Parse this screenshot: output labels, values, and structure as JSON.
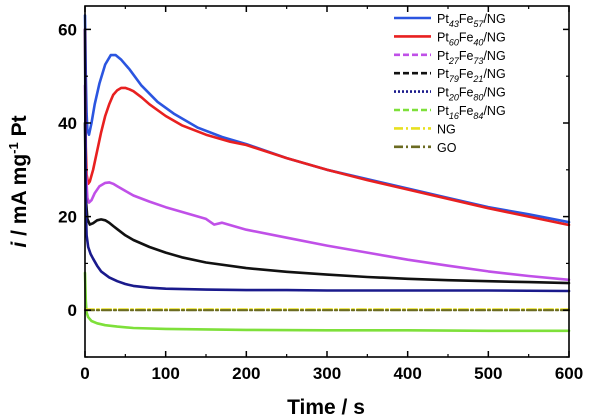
{
  "chart_data": {
    "type": "line",
    "xlabel": "Time / s",
    "ylabel": "i / mA mg-1 Pt",
    "xlim": [
      0,
      600
    ],
    "ylim": [
      -10,
      65
    ],
    "xticks": [
      0,
      100,
      200,
      300,
      400,
      500,
      600
    ],
    "yticks": [
      0,
      20,
      40,
      60
    ],
    "grid": false,
    "legend_position": "top-right",
    "series": [
      {
        "name": "Pt43Fe57/NG",
        "legend": {
          "pre": "Pt",
          "s1": "43",
          "mid": "Fe",
          "s2": "57",
          "post": "/NG"
        },
        "color": "#2b55e0",
        "dash": "solid",
        "x": [
          0,
          1,
          2,
          3,
          5,
          8,
          12,
          18,
          25,
          32,
          38,
          45,
          55,
          70,
          90,
          110,
          140,
          170,
          200,
          250,
          300,
          350,
          400,
          450,
          500,
          550,
          600
        ],
        "y": [
          63,
          50,
          42,
          38.5,
          37.5,
          40,
          44,
          48.5,
          52.5,
          54.5,
          54.5,
          53.5,
          51.5,
          48,
          44.5,
          42,
          39,
          37,
          35.5,
          32.5,
          30,
          28,
          26,
          24,
          22,
          20.5,
          18.8
        ]
      },
      {
        "name": "Pt60Fe40/NG",
        "legend": {
          "pre": "Pt",
          "s1": "60",
          "mid": "Fe",
          "s2": "40",
          "post": "/NG"
        },
        "color": "#e82020",
        "dash": "solid",
        "x": [
          0,
          1,
          2,
          4,
          6,
          10,
          15,
          20,
          25,
          30,
          35,
          40,
          45,
          50,
          55,
          60,
          70,
          80,
          100,
          120,
          150,
          180,
          200,
          250,
          300,
          350,
          400,
          450,
          500,
          550,
          600
        ],
        "y": [
          60,
          35,
          29,
          27,
          27.5,
          30,
          34,
          38,
          41.5,
          44,
          46,
          47,
          47.5,
          47.5,
          47.2,
          46.8,
          45.5,
          44,
          41.5,
          39.5,
          37.5,
          36,
          35.3,
          32.5,
          30,
          27.8,
          25.8,
          23.8,
          21.8,
          20,
          18.2
        ]
      },
      {
        "name": "Pt27Fe73/NG",
        "legend": {
          "pre": "Pt",
          "s1": "27",
          "mid": "Fe",
          "s2": "73",
          "post": "/NG"
        },
        "color": "#c050e8",
        "dash": "solid",
        "x": [
          0,
          1,
          3,
          5,
          8,
          12,
          18,
          25,
          30,
          35,
          40,
          50,
          60,
          80,
          100,
          120,
          150,
          160,
          170,
          200,
          250,
          300,
          350,
          400,
          450,
          500,
          550,
          600
        ],
        "y": [
          48,
          30,
          24,
          23,
          23.5,
          25,
          26.5,
          27.2,
          27.3,
          27,
          26.5,
          25.5,
          24.5,
          23.2,
          22,
          21,
          19.5,
          18.3,
          18.7,
          17.2,
          15.5,
          13.8,
          12.3,
          10.8,
          9.5,
          8.3,
          7.3,
          6.5
        ]
      },
      {
        "name": "Pt79Fe21/NG",
        "legend": {
          "pre": "Pt",
          "s1": "79",
          "mid": "Fe",
          "s2": "21",
          "post": "/NG"
        },
        "color": "#111111",
        "dash": "solid",
        "x": [
          0,
          1,
          3,
          6,
          10,
          15,
          20,
          25,
          30,
          35,
          40,
          50,
          60,
          80,
          100,
          120,
          150,
          200,
          250,
          300,
          350,
          400,
          450,
          500,
          550,
          600
        ],
        "y": [
          40,
          24,
          19.5,
          18.3,
          18.6,
          19.2,
          19.4,
          19.2,
          18.7,
          18,
          17.3,
          16,
          15,
          13.5,
          12.3,
          11.3,
          10.2,
          9,
          8.2,
          7.6,
          7.1,
          6.7,
          6.4,
          6.2,
          6,
          5.8
        ]
      },
      {
        "name": "Pt20Fe80/NG",
        "legend": {
          "pre": "Pt",
          "s1": "20",
          "mid": "Fe",
          "s2": "80",
          "post": "/NG"
        },
        "color": "#1a1a8c",
        "dash": "solid",
        "x": [
          0,
          1,
          2,
          4,
          7,
          10,
          15,
          20,
          30,
          40,
          50,
          60,
          80,
          100,
          150,
          200,
          250,
          300,
          400,
          500,
          600
        ],
        "y": [
          60,
          22,
          16,
          13.5,
          12,
          11,
          9.5,
          8.3,
          7,
          6.2,
          5.6,
          5.2,
          4.8,
          4.6,
          4.4,
          4.3,
          4.3,
          4.2,
          4.2,
          4.2,
          4.1
        ]
      },
      {
        "name": "Pt16Fe84/NG",
        "legend": {
          "pre": "Pt",
          "s1": "16",
          "mid": "Fe",
          "s2": "84",
          "post": "/NG"
        },
        "color": "#7ee03a",
        "dash": "solid",
        "x": [
          0,
          1,
          2,
          4,
          8,
          15,
          25,
          40,
          60,
          100,
          150,
          200,
          300,
          400,
          500,
          600
        ],
        "y": [
          8,
          2,
          -0.5,
          -1.5,
          -2.3,
          -2.8,
          -3.2,
          -3.5,
          -3.8,
          -4.0,
          -4.1,
          -4.2,
          -4.3,
          -4.3,
          -4.4,
          -4.4
        ]
      },
      {
        "name": "NG",
        "legend": {
          "pre": "NG",
          "s1": "",
          "mid": "",
          "s2": "",
          "post": ""
        },
        "color": "#e8e020",
        "dash": "dashdot",
        "x": [
          0,
          600
        ],
        "y": [
          0.2,
          0.2
        ]
      },
      {
        "name": "GO",
        "legend": {
          "pre": "GO",
          "s1": "",
          "mid": "",
          "s2": "",
          "post": ""
        },
        "color": "#6b6b22",
        "dash": "dashdot",
        "x": [
          0,
          600
        ],
        "y": [
          0,
          0
        ]
      }
    ]
  }
}
